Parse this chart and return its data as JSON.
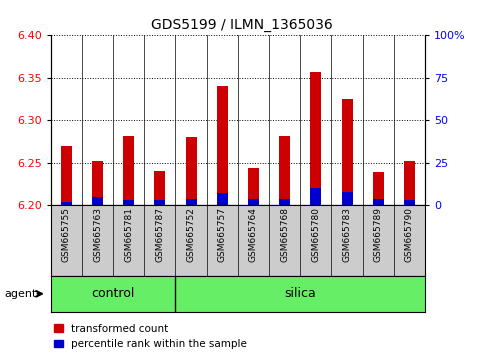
{
  "title": "GDS5199 / ILMN_1365036",
  "samples": [
    "GSM665755",
    "GSM665763",
    "GSM665781",
    "GSM665787",
    "GSM665752",
    "GSM665757",
    "GSM665764",
    "GSM665768",
    "GSM665780",
    "GSM665783",
    "GSM665789",
    "GSM665790"
  ],
  "groups": [
    "control",
    "control",
    "control",
    "control",
    "silica",
    "silica",
    "silica",
    "silica",
    "silica",
    "silica",
    "silica",
    "silica"
  ],
  "transformed_count": [
    6.27,
    6.252,
    6.282,
    6.24,
    6.281,
    6.34,
    6.244,
    6.282,
    6.357,
    6.325,
    6.239,
    6.252
  ],
  "percentile_rank": [
    2,
    5,
    3,
    3,
    4,
    7,
    4,
    4,
    10,
    8,
    4,
    3
  ],
  "ylim_left": [
    6.2,
    6.4
  ],
  "ylim_right": [
    0,
    100
  ],
  "left_ticks": [
    6.2,
    6.25,
    6.3,
    6.35,
    6.4
  ],
  "right_ticks": [
    0,
    25,
    50,
    75,
    100
  ],
  "right_tick_labels": [
    "0",
    "25",
    "50",
    "75",
    "100%"
  ],
  "bar_color_red": "#cc0000",
  "bar_color_blue": "#0000cc",
  "bar_baseline": 6.2,
  "title_fontsize": 10,
  "legend_fontsize": 7.5,
  "bar_width": 0.35,
  "agent_label": "agent",
  "control_label": "control",
  "silica_label": "silica",
  "legend_red": "transformed count",
  "legend_blue": "percentile rank within the sample",
  "n_control": 4,
  "n_silica": 8
}
